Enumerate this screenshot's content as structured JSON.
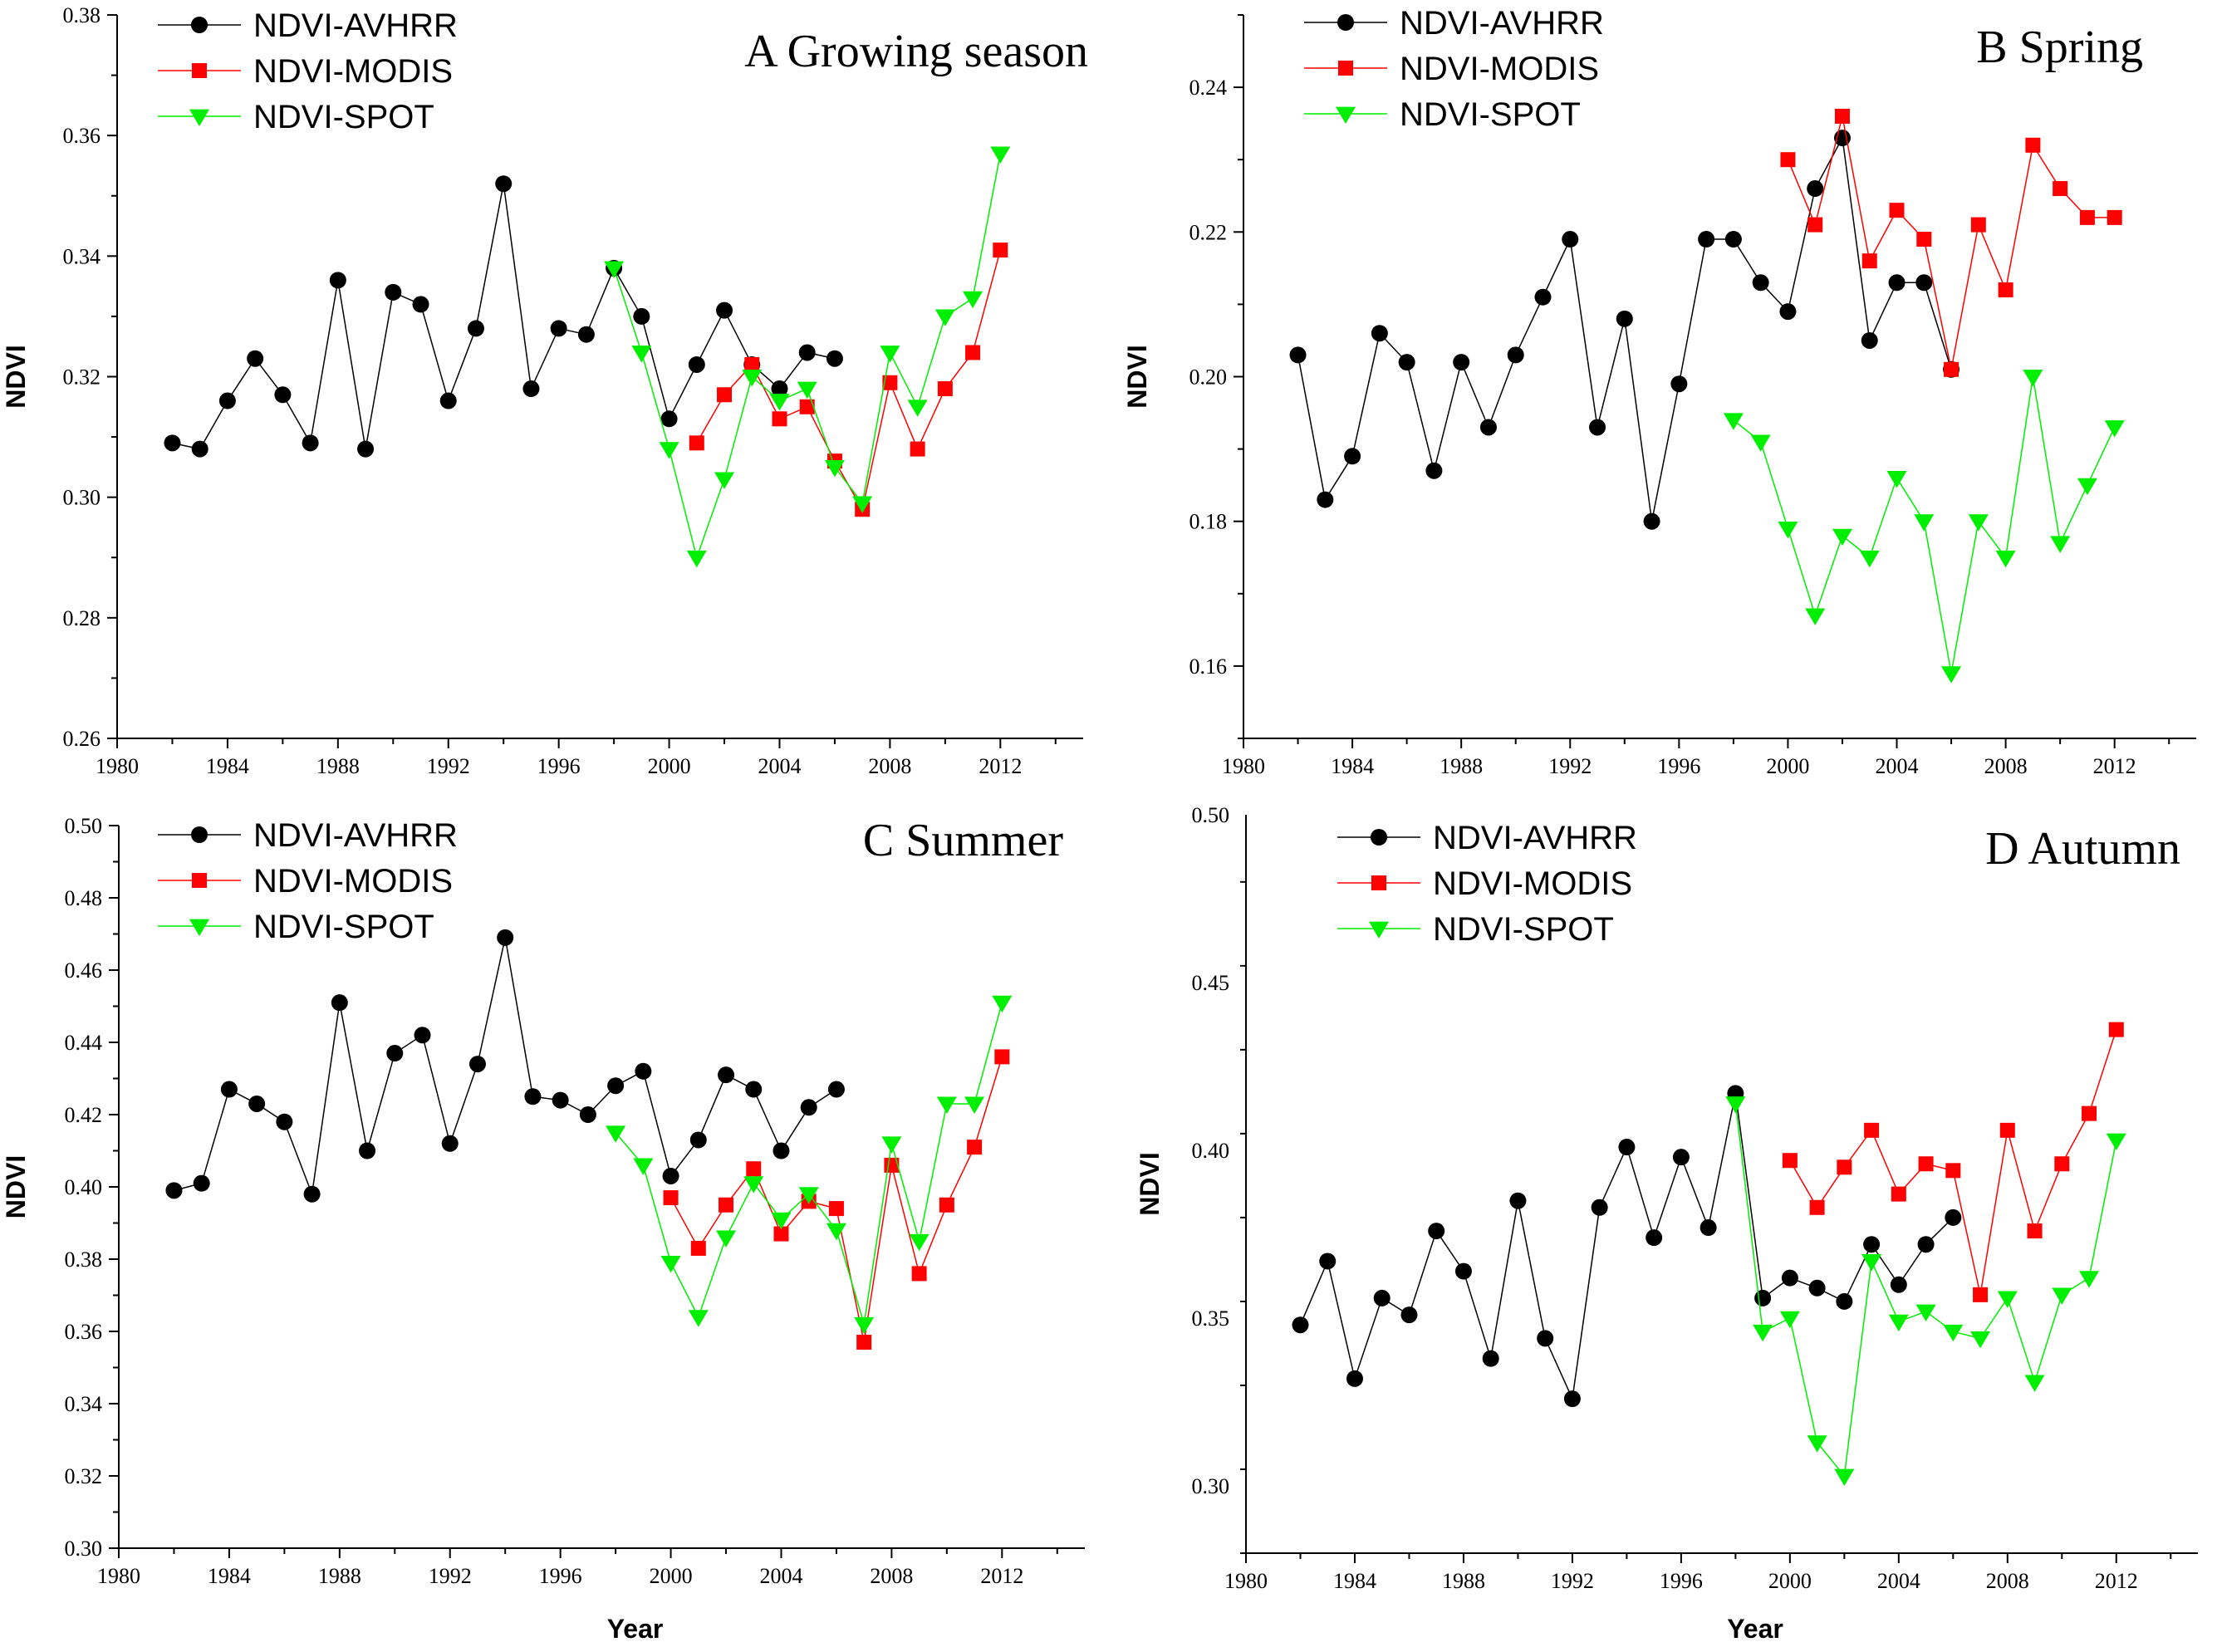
{
  "chart_data": [
    {
      "type": "line",
      "panel": "A",
      "title": "A  Growing season",
      "xlabel": "",
      "ylabel": "NDVI",
      "xlim": [
        1980,
        2015
      ],
      "ylim": [
        0.26,
        0.38
      ],
      "xticks": [
        1980,
        1984,
        1988,
        1992,
        1996,
        2000,
        2004,
        2008,
        2012
      ],
      "yticks": [
        0.26,
        0.28,
        0.3,
        0.32,
        0.34,
        0.36,
        0.38
      ],
      "ydecimals": 2,
      "series": [
        {
          "name": "NDVI-AVHRR",
          "x": [
            1982,
            1983,
            1984,
            1985,
            1986,
            1987,
            1988,
            1989,
            1990,
            1991,
            1992,
            1993,
            1994,
            1995,
            1996,
            1997,
            1998,
            1999,
            2000,
            2001,
            2002,
            2003,
            2004,
            2005,
            2006
          ],
          "values": [
            0.309,
            0.308,
            0.316,
            0.323,
            0.317,
            0.309,
            0.336,
            0.308,
            0.334,
            0.332,
            0.316,
            0.328,
            0.352,
            0.318,
            0.328,
            0.327,
            0.338,
            0.33,
            0.313,
            0.322,
            0.331,
            0.322,
            0.318,
            0.324,
            0.323
          ]
        },
        {
          "name": "NDVI-MODIS",
          "x": [
            2001,
            2002,
            2003,
            2004,
            2005,
            2006,
            2007,
            2008,
            2009,
            2010,
            2011,
            2012
          ],
          "values": [
            0.309,
            0.317,
            0.322,
            0.313,
            0.315,
            0.306,
            0.298,
            0.319,
            0.308,
            0.318,
            0.324,
            0.341
          ]
        },
        {
          "name": "NDVI-SPOT",
          "x": [
            1998,
            1999,
            2000,
            2001,
            2002,
            2003,
            2004,
            2005,
            2006,
            2007,
            2008,
            2009,
            2010,
            2011,
            2012
          ],
          "values": [
            0.338,
            0.324,
            0.308,
            0.29,
            0.303,
            0.32,
            0.316,
            0.318,
            0.305,
            0.299,
            0.324,
            0.315,
            0.33,
            0.333,
            0.357
          ]
        }
      ]
    },
    {
      "type": "line",
      "panel": "B",
      "title": "B   Spring",
      "xlabel": "",
      "ylabel": "NDVI",
      "xlim": [
        1980,
        2015
      ],
      "ylim": [
        0.15,
        0.25
      ],
      "xticks": [
        1980,
        1984,
        1988,
        1992,
        1996,
        2000,
        2004,
        2008,
        2012
      ],
      "yticks": [
        0.16,
        0.18,
        0.2,
        0.22,
        0.24
      ],
      "ydecimals": 2,
      "series": [
        {
          "name": "NDVI-AVHRR",
          "x": [
            1982,
            1983,
            1984,
            1985,
            1986,
            1987,
            1988,
            1989,
            1990,
            1991,
            1992,
            1993,
            1994,
            1995,
            1996,
            1997,
            1998,
            1999,
            2000,
            2001,
            2002,
            2003,
            2004,
            2005,
            2006
          ],
          "values": [
            0.203,
            0.183,
            0.189,
            0.206,
            0.202,
            0.187,
            0.202,
            0.193,
            0.203,
            0.211,
            0.219,
            0.193,
            0.208,
            0.18,
            0.199,
            0.219,
            0.219,
            0.213,
            0.209,
            0.226,
            0.233,
            0.205,
            0.213,
            0.213,
            0.201
          ]
        },
        {
          "name": "NDVI-MODIS",
          "x": [
            2000,
            2001,
            2002,
            2003,
            2004,
            2005,
            2006,
            2007,
            2008,
            2009,
            2010,
            2011,
            2012
          ],
          "values": [
            0.23,
            0.221,
            0.236,
            0.216,
            0.223,
            0.219,
            0.201,
            0.221,
            0.212,
            0.232,
            0.226,
            0.222,
            0.222
          ]
        },
        {
          "name": "NDVI-SPOT",
          "x": [
            1998,
            1999,
            2000,
            2001,
            2002,
            2003,
            2004,
            2005,
            2006,
            2007,
            2008,
            2009,
            2010,
            2011,
            2012
          ],
          "values": [
            0.194,
            0.191,
            0.179,
            0.167,
            0.178,
            0.175,
            0.186,
            0.18,
            0.159,
            0.18,
            0.175,
            0.2,
            0.177,
            0.185,
            0.193
          ]
        }
      ]
    },
    {
      "type": "line",
      "panel": "C",
      "title": "C   Summer",
      "xlabel": "Year",
      "ylabel": "NDVI",
      "xlim": [
        1980,
        2015
      ],
      "ylim": [
        0.3,
        0.5
      ],
      "xticks": [
        1980,
        1984,
        1988,
        1992,
        1996,
        2000,
        2004,
        2008,
        2012
      ],
      "yticks": [
        0.3,
        0.32,
        0.34,
        0.36,
        0.38,
        0.4,
        0.42,
        0.44,
        0.46,
        0.48,
        0.5
      ],
      "ydecimals": 2,
      "series": [
        {
          "name": "NDVI-AVHRR",
          "x": [
            1982,
            1983,
            1984,
            1985,
            1986,
            1987,
            1988,
            1989,
            1990,
            1991,
            1992,
            1993,
            1994,
            1995,
            1996,
            1997,
            1998,
            1999,
            2000,
            2001,
            2002,
            2003,
            2004,
            2005,
            2006
          ],
          "values": [
            0.399,
            0.401,
            0.427,
            0.423,
            0.418,
            0.398,
            0.451,
            0.41,
            0.437,
            0.442,
            0.412,
            0.434,
            0.469,
            0.425,
            0.424,
            0.42,
            0.428,
            0.432,
            0.403,
            0.413,
            0.431,
            0.427,
            0.41,
            0.422,
            0.427
          ]
        },
        {
          "name": "NDVI-MODIS",
          "x": [
            2000,
            2001,
            2002,
            2003,
            2004,
            2005,
            2006,
            2007,
            2008,
            2009,
            2010,
            2011,
            2012
          ],
          "values": [
            0.397,
            0.383,
            0.395,
            0.405,
            0.387,
            0.396,
            0.394,
            0.357,
            0.406,
            0.376,
            0.395,
            0.411,
            0.436
          ]
        },
        {
          "name": "NDVI-SPOT",
          "x": [
            1998,
            1999,
            2000,
            2001,
            2002,
            2003,
            2004,
            2005,
            2006,
            2007,
            2008,
            2009,
            2010,
            2011,
            2012
          ],
          "values": [
            0.415,
            0.406,
            0.379,
            0.364,
            0.386,
            0.401,
            0.391,
            0.398,
            0.388,
            0.362,
            0.412,
            0.385,
            0.423,
            0.423,
            0.451
          ]
        }
      ]
    },
    {
      "type": "line",
      "panel": "D",
      "title": "D   Autumn",
      "xlabel": "Year",
      "ylabel": "NDVI",
      "xlim": [
        1980,
        2015
      ],
      "ylim": [
        0.28,
        0.5
      ],
      "xticks": [
        1980,
        1984,
        1988,
        1992,
        1996,
        2000,
        2004,
        2008,
        2012
      ],
      "yticks": [
        0.3,
        0.35,
        0.4,
        0.45,
        0.5
      ],
      "ydecimals": 2,
      "series": [
        {
          "name": "NDVI-AVHRR",
          "x": [
            1982,
            1983,
            1984,
            1985,
            1986,
            1987,
            1988,
            1989,
            1990,
            1991,
            1992,
            1993,
            1994,
            1995,
            1996,
            1997,
            1998,
            1999,
            2000,
            2001,
            2002,
            2003,
            2004,
            2005,
            2006
          ],
          "values": [
            0.348,
            0.367,
            0.332,
            0.356,
            0.351,
            0.376,
            0.364,
            0.338,
            0.385,
            0.344,
            0.326,
            0.383,
            0.401,
            0.374,
            0.398,
            0.377,
            0.417,
            0.356,
            0.362,
            0.359,
            0.355,
            0.372,
            0.36,
            0.372,
            0.38
          ]
        },
        {
          "name": "NDVI-MODIS",
          "x": [
            2000,
            2001,
            2002,
            2003,
            2004,
            2005,
            2006,
            2007,
            2008,
            2009,
            2010,
            2011,
            2012
          ],
          "values": [
            0.397,
            0.383,
            0.395,
            0.406,
            0.387,
            0.396,
            0.394,
            0.357,
            0.406,
            0.376,
            0.396,
            0.411,
            0.436
          ]
        },
        {
          "name": "NDVI-SPOT",
          "x": [
            1998,
            1999,
            2000,
            2001,
            2002,
            2003,
            2004,
            2005,
            2006,
            2007,
            2008,
            2009,
            2010,
            2011,
            2012
          ],
          "values": [
            0.414,
            0.346,
            0.35,
            0.313,
            0.303,
            0.367,
            0.349,
            0.352,
            0.346,
            0.344,
            0.356,
            0.331,
            0.357,
            0.362,
            0.403
          ]
        }
      ]
    }
  ],
  "series_styles": {
    "NDVI-AVHRR": {
      "color": "#000000",
      "marker": "circle"
    },
    "NDVI-MODIS": {
      "color": "#ff0000",
      "marker": "square"
    },
    "NDVI-SPOT": {
      "color": "#00ee00",
      "marker": "triangle-down"
    }
  }
}
